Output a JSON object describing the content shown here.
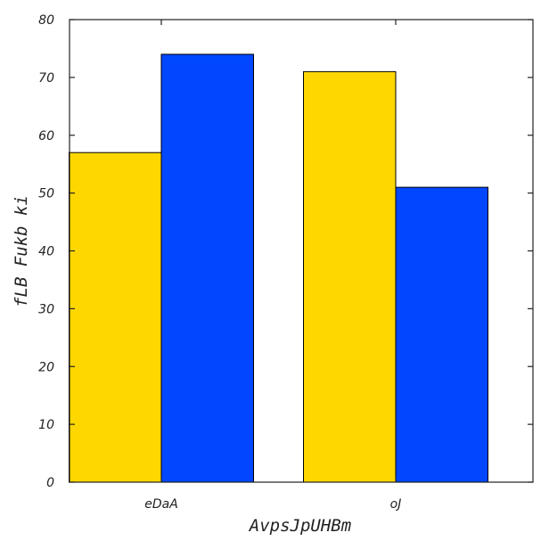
{
  "chart_data": {
    "type": "bar",
    "title": "",
    "xlabel": "AvpsJpUHBm",
    "ylabel": "fLB Fukb ki",
    "categories": [
      "eDaA",
      "oJ"
    ],
    "series": [
      {
        "values": [
          57,
          71
        ],
        "color": "#FFD700"
      },
      {
        "values": [
          74,
          51
        ],
        "color": "#0047FF"
      }
    ],
    "ylim": [
      0,
      80
    ],
    "yticks": [
      0,
      10,
      20,
      30,
      40,
      50,
      60,
      70,
      80
    ],
    "grid": false,
    "legend": "none"
  }
}
